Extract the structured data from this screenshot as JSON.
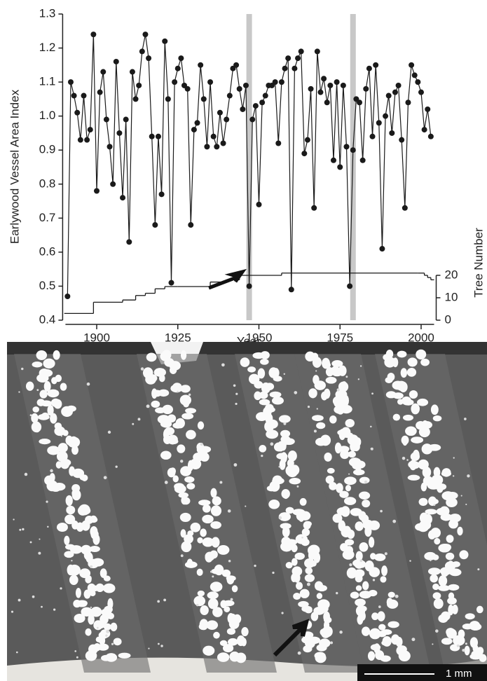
{
  "chart_data": {
    "type": "line",
    "y_label": "Earlywood Vessel Area Index",
    "x_label": "Year",
    "y2_label": "Tree Number",
    "x": [
      1891,
      1892,
      1893,
      1894,
      1895,
      1896,
      1897,
      1898,
      1899,
      1900,
      1901,
      1902,
      1903,
      1904,
      1905,
      1906,
      1907,
      1908,
      1909,
      1910,
      1911,
      1912,
      1913,
      1914,
      1915,
      1916,
      1917,
      1918,
      1919,
      1920,
      1921,
      1922,
      1923,
      1924,
      1925,
      1926,
      1927,
      1928,
      1929,
      1930,
      1931,
      1932,
      1933,
      1934,
      1935,
      1936,
      1937,
      1938,
      1939,
      1940,
      1941,
      1942,
      1943,
      1944,
      1945,
      1946,
      1947,
      1948,
      1949,
      1950,
      1951,
      1952,
      1953,
      1954,
      1955,
      1956,
      1957,
      1958,
      1959,
      1960,
      1961,
      1962,
      1963,
      1964,
      1965,
      1966,
      1967,
      1968,
      1969,
      1970,
      1971,
      1972,
      1973,
      1974,
      1975,
      1976,
      1977,
      1978,
      1979,
      1980,
      1981,
      1982,
      1983,
      1984,
      1985,
      1986,
      1987,
      1988,
      1989,
      1990,
      1991,
      1992,
      1993,
      1994,
      1995,
      1996,
      1997,
      1998,
      1999,
      2000,
      2001,
      2002,
      2003
    ],
    "series": [
      {
        "color": "#1a1a1a",
        "values": [
          0.47,
          1.1,
          1.06,
          1.01,
          0.93,
          1.06,
          0.93,
          0.96,
          1.24,
          0.78,
          1.07,
          1.13,
          0.99,
          0.91,
          0.8,
          1.16,
          0.95,
          0.76,
          0.99,
          0.63,
          1.13,
          1.05,
          1.09,
          1.19,
          1.24,
          1.17,
          0.94,
          0.68,
          0.94,
          0.77,
          1.22,
          1.05,
          0.51,
          1.1,
          1.14,
          1.17,
          1.09,
          1.08,
          0.68,
          0.96,
          0.98,
          1.15,
          1.05,
          0.91,
          1.1,
          0.94,
          0.91,
          1.01,
          0.92,
          0.99,
          1.06,
          1.14,
          1.15,
          1.08,
          1.02,
          1.09,
          0.5,
          0.99,
          1.03,
          0.74,
          1.04,
          1.06,
          1.09,
          1.09,
          1.1,
          0.92,
          1.1,
          1.14,
          1.17,
          0.49,
          1.14,
          1.17,
          1.19,
          0.89,
          0.93,
          1.08,
          0.73,
          1.19,
          1.07,
          1.11,
          1.04,
          1.09,
          0.87,
          1.1,
          0.85,
          1.09,
          0.91,
          0.5,
          0.9,
          1.05,
          1.04,
          0.87,
          1.08,
          1.14,
          0.94,
          1.15,
          0.98,
          0.61,
          1.0,
          1.06,
          0.95,
          1.07,
          1.09,
          0.93,
          0.73,
          1.04,
          1.15,
          1.12,
          1.1,
          1.07,
          0.96,
          1.02,
          0.94
        ]
      },
      {
        "color": "#1a1a1a",
        "axis": "y2",
        "step": true,
        "x": [
          1890,
          1899,
          1908,
          1912,
          1915,
          1918,
          1921,
          1925,
          1935,
          1940,
          1944,
          1957,
          1999,
          2001,
          2002,
          2003,
          2004
        ],
        "values": [
          3,
          8,
          9,
          11,
          12,
          14,
          15,
          15,
          17,
          18,
          20,
          21,
          21,
          20,
          19,
          18,
          18
        ]
      }
    ],
    "highlights": [
      1947,
      1979
    ],
    "xlim": [
      1889.5,
      2004
    ],
    "xticks": [
      1900,
      1925,
      1950,
      1975,
      2000
    ],
    "ylim": [
      0.4,
      1.3
    ],
    "yticks": [
      0.4,
      0.5,
      0.6,
      0.7,
      0.8,
      0.9,
      {
        "value": 1,
        "label": "1.0"
      },
      1.1,
      1.2,
      1.3
    ],
    "y2lim": [
      0,
      136.5
    ],
    "y2ticks": [
      0,
      10,
      20
    ]
  },
  "micrograph": {
    "scale_label": "1 mm"
  }
}
